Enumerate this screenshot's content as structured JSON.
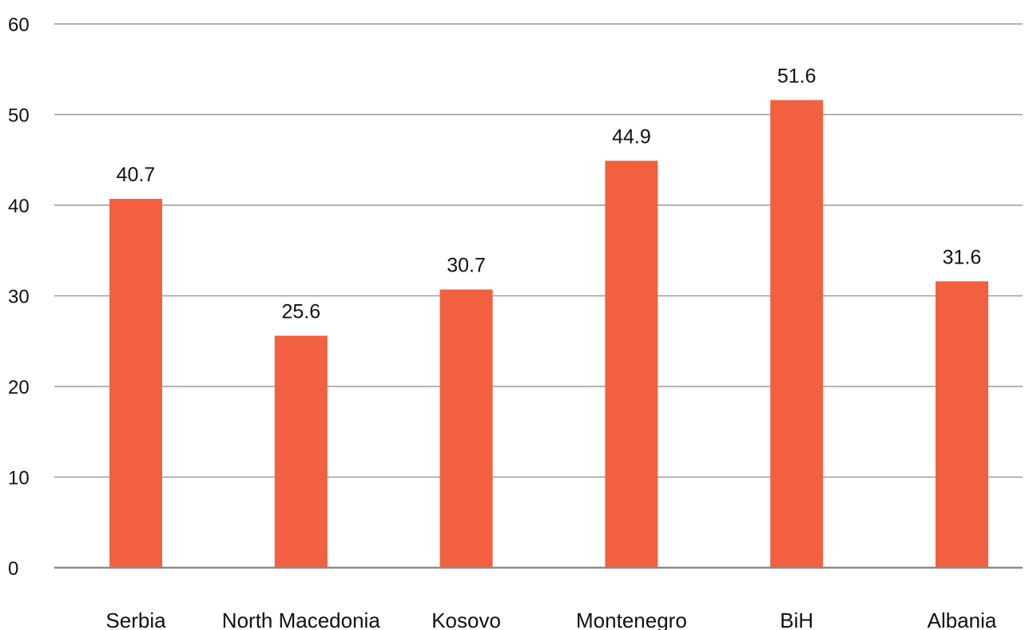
{
  "chart_data": {
    "type": "bar",
    "categories": [
      "Serbia",
      "North Macedonia",
      "Kosovo",
      "Montenegro",
      "BiH",
      "Albania"
    ],
    "values": [
      40.7,
      25.6,
      30.7,
      44.9,
      51.6,
      31.6
    ],
    "data_labels": [
      "40.7",
      "25.6",
      "30.7",
      "44.9",
      "51.6",
      "31.6"
    ],
    "y_ticks": [
      "0",
      "10",
      "20",
      "30",
      "40",
      "50",
      "60"
    ],
    "ylim": [
      0,
      60
    ],
    "grid": true,
    "legend": "none",
    "bar_color": "#f2603f",
    "title": "",
    "xlabel": "",
    "ylabel": ""
  }
}
